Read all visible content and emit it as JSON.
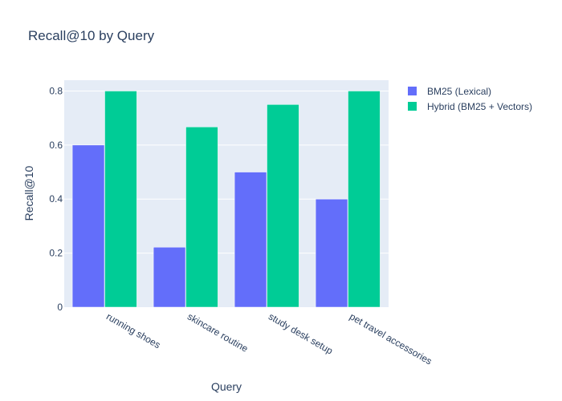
{
  "chart_data": {
    "type": "bar",
    "title": "Recall@10 by Query",
    "xlabel": "Query",
    "ylabel": "Recall@10",
    "categories": [
      "running shoes",
      "skincare routine",
      "study desk setup",
      "pet travel accessories"
    ],
    "series": [
      {
        "name": "BM25 (Lexical)",
        "color": "#636efa",
        "values": [
          0.6,
          0.222,
          0.5,
          0.4
        ]
      },
      {
        "name": "Hybrid (BM25 + Vectors)",
        "color": "#00cc96",
        "values": [
          0.8,
          0.667,
          0.75,
          0.8
        ]
      }
    ],
    "ylim": [
      0,
      0.84
    ],
    "yticks": [
      0,
      0.2,
      0.4,
      0.6,
      0.8
    ],
    "ytick_labels": [
      "0",
      "0.2",
      "0.4",
      "0.6",
      "0.8"
    ],
    "grid": true,
    "legend_position": "top-right",
    "plot_background": "#e5ecf6"
  }
}
